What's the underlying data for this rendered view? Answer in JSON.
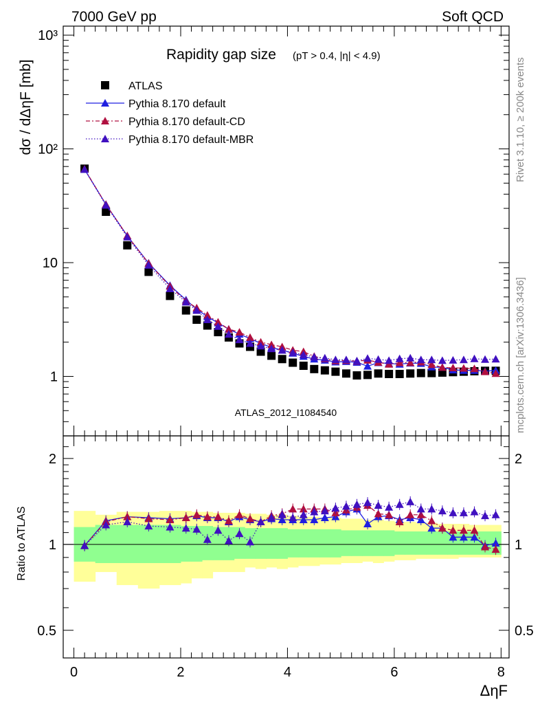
{
  "header": {
    "left": "7000 GeV pp",
    "right": "Soft QCD"
  },
  "side_labels": {
    "rivet": "Rivet 3.1.10, ≥ 200k events",
    "mcplots": "mcplots.cern.ch [arXiv:1306.3436]"
  },
  "chart_data": [
    {
      "type": "scatter",
      "panel": "main",
      "title": "Rapidity gap size",
      "title_suffix": "(pT > 0.4, |η| < 4.9)",
      "analysis_id": "ATLAS_2012_I1084540",
      "ylabel": "dσ / dΔηF [mb]",
      "yscale": "log",
      "ylim": [
        0.3,
        1200
      ],
      "xlim": [
        -0.2,
        8.15
      ],
      "y_tick_labels": [
        "1",
        "10",
        "10²",
        "10³"
      ],
      "legend_position": "top-left",
      "x": [
        0.2,
        0.6,
        1.0,
        1.4,
        1.8,
        2.1,
        2.3,
        2.5,
        2.7,
        2.9,
        3.1,
        3.3,
        3.5,
        3.7,
        3.9,
        4.1,
        4.3,
        4.5,
        4.7,
        4.9,
        5.1,
        5.3,
        5.5,
        5.7,
        5.9,
        6.1,
        6.3,
        6.5,
        6.7,
        6.9,
        7.1,
        7.3,
        7.5,
        7.7,
        7.9
      ],
      "series": [
        {
          "name": "ATLAS",
          "color": "#000000",
          "marker": "square",
          "values": [
            67,
            28,
            14.2,
            8.3,
            5.1,
            3.8,
            3.15,
            2.8,
            2.45,
            2.2,
            1.95,
            1.82,
            1.65,
            1.52,
            1.42,
            1.32,
            1.24,
            1.16,
            1.13,
            1.1,
            1.06,
            1.02,
            1.03,
            1.06,
            1.05,
            1.05,
            1.06,
            1.07,
            1.07,
            1.08,
            1.09,
            1.1,
            1.11,
            1.12,
            1.12
          ]
        },
        {
          "name": "Pythia 8.170 default",
          "color": "#1f1fe0",
          "marker": "triangle",
          "line": "solid",
          "values": [
            66,
            32.5,
            17.2,
            9.9,
            6.3,
            4.7,
            3.9,
            3.35,
            2.95,
            2.6,
            2.35,
            2.15,
            1.95,
            1.8,
            1.7,
            1.6,
            1.5,
            1.42,
            1.39,
            1.34,
            1.35,
            1.33,
            1.23,
            1.32,
            1.3,
            1.28,
            1.31,
            1.3,
            1.21,
            1.2,
            1.14,
            1.13,
            1.13,
            1.11,
            1.13
          ]
        },
        {
          "name": "Pythia 8.170 default-CD",
          "color": "#b01040",
          "marker": "triangle",
          "line": "dashdot",
          "values": [
            66.5,
            32.5,
            17.2,
            9.85,
            6.2,
            4.6,
            4.0,
            3.45,
            3.0,
            2.6,
            2.45,
            2.2,
            2.0,
            1.9,
            1.82,
            1.7,
            1.65,
            1.5,
            1.43,
            1.37,
            1.38,
            1.36,
            1.39,
            1.33,
            1.28,
            1.32,
            1.32,
            1.34,
            1.27,
            1.2,
            1.19,
            1.18,
            1.17,
            1.1,
            1.06
          ]
        },
        {
          "name": "Pythia 8.170 default-MBR",
          "color": "#4010c0",
          "marker": "triangle",
          "line": "dotted",
          "values": [
            66,
            32,
            16.8,
            9.5,
            5.9,
            4.5,
            3.8,
            3.15,
            2.75,
            2.35,
            2.1,
            1.95,
            1.85,
            1.75,
            1.7,
            1.62,
            1.55,
            1.48,
            1.45,
            1.4,
            1.4,
            1.37,
            1.44,
            1.41,
            1.38,
            1.43,
            1.45,
            1.4,
            1.4,
            1.38,
            1.39,
            1.4,
            1.43,
            1.41,
            1.42
          ]
        }
      ]
    },
    {
      "type": "scatter",
      "panel": "ratio",
      "xlabel": "ΔηF",
      "ylabel": "Ratio to ATLAS",
      "ylim": [
        0.4,
        2.4
      ],
      "y_tick_labels": [
        "0.5",
        "1",
        "2"
      ],
      "x_tick_labels": [
        "0",
        "2",
        "4",
        "6",
        "8"
      ],
      "x": [
        0.2,
        0.6,
        1.0,
        1.4,
        1.8,
        2.1,
        2.3,
        2.5,
        2.7,
        2.9,
        3.1,
        3.3,
        3.5,
        3.7,
        3.9,
        4.1,
        4.3,
        4.5,
        4.7,
        4.9,
        5.1,
        5.3,
        5.5,
        5.7,
        5.9,
        6.1,
        6.3,
        6.5,
        6.7,
        6.9,
        7.1,
        7.3,
        7.5,
        7.7,
        7.9
      ],
      "band_edges": [
        0.0,
        0.4,
        0.8,
        1.2,
        1.6,
        2.0,
        2.2,
        2.4,
        2.6,
        2.8,
        3.0,
        3.2,
        3.4,
        3.6,
        3.8,
        4.0,
        4.2,
        4.4,
        4.6,
        4.8,
        5.0,
        5.2,
        5.4,
        5.6,
        5.8,
        6.0,
        6.2,
        6.4,
        6.6,
        6.8,
        7.0,
        7.2,
        7.4,
        7.6,
        7.8,
        8.0
      ],
      "band_green": {
        "color": "#90ff90",
        "lower": [
          0.87,
          0.86,
          0.86,
          0.86,
          0.86,
          0.87,
          0.87,
          0.88,
          0.88,
          0.88,
          0.89,
          0.89,
          0.89,
          0.89,
          0.89,
          0.9,
          0.9,
          0.9,
          0.9,
          0.9,
          0.91,
          0.91,
          0.91,
          0.91,
          0.91,
          0.92,
          0.92,
          0.92,
          0.92,
          0.92,
          0.92,
          0.92,
          0.92,
          0.92,
          0.92
        ],
        "upper": [
          1.15,
          1.17,
          1.17,
          1.17,
          1.17,
          1.16,
          1.16,
          1.16,
          1.15,
          1.15,
          1.15,
          1.14,
          1.14,
          1.14,
          1.14,
          1.13,
          1.13,
          1.13,
          1.13,
          1.13,
          1.12,
          1.12,
          1.12,
          1.12,
          1.12,
          1.11,
          1.11,
          1.11,
          1.11,
          1.11,
          1.11,
          1.11,
          1.11,
          1.11,
          1.11
        ]
      },
      "band_yellow": {
        "color": "#ffff99",
        "lower": [
          0.74,
          0.8,
          0.72,
          0.7,
          0.72,
          0.73,
          0.76,
          0.76,
          0.8,
          0.8,
          0.8,
          0.83,
          0.82,
          0.83,
          0.82,
          0.83,
          0.84,
          0.84,
          0.85,
          0.85,
          0.86,
          0.86,
          0.87,
          0.86,
          0.87,
          0.88,
          0.88,
          0.89,
          0.89,
          0.89,
          0.89,
          0.9,
          0.9,
          0.9,
          0.9
        ],
        "upper": [
          1.31,
          1.27,
          1.3,
          1.3,
          1.31,
          1.31,
          1.3,
          1.3,
          1.29,
          1.29,
          1.29,
          1.28,
          1.28,
          1.27,
          1.27,
          1.26,
          1.25,
          1.25,
          1.24,
          1.24,
          1.23,
          1.23,
          1.22,
          1.22,
          1.21,
          1.2,
          1.2,
          1.19,
          1.19,
          1.18,
          1.18,
          1.18,
          1.17,
          1.17,
          1.17
        ]
      },
      "series": [
        {
          "name": "Pythia 8.170 default",
          "color": "#1f1fe0",
          "line": "solid",
          "values": [
            0.99,
            1.21,
            1.25,
            1.24,
            1.23,
            1.24,
            1.26,
            1.24,
            1.24,
            1.2,
            1.25,
            1.22,
            1.2,
            1.23,
            1.22,
            1.22,
            1.22,
            1.22,
            1.24,
            1.25,
            1.3,
            1.33,
            1.18,
            1.25,
            1.26,
            1.22,
            1.24,
            1.22,
            1.14,
            1.14,
            1.06,
            1.06,
            1.06,
            0.99,
            1.01
          ]
        },
        {
          "name": "Pythia 8.170 default-CD",
          "color": "#b01040",
          "line": "dashdot",
          "values": [
            0.99,
            1.2,
            1.25,
            1.23,
            1.22,
            1.24,
            1.27,
            1.25,
            1.25,
            1.21,
            1.27,
            1.23,
            1.2,
            1.26,
            1.28,
            1.33,
            1.33,
            1.33,
            1.33,
            1.29,
            1.32,
            1.35,
            1.37,
            1.28,
            1.27,
            1.2,
            1.27,
            1.27,
            1.21,
            1.14,
            1.12,
            1.12,
            1.12,
            0.98,
            0.96
          ]
        },
        {
          "name": "Pythia 8.170 default-MBR",
          "color": "#4010c0",
          "line": "dotted",
          "values": [
            0.99,
            1.17,
            1.2,
            1.16,
            1.15,
            1.14,
            1.13,
            1.04,
            1.12,
            1.03,
            1.09,
            1.02,
            1.2,
            1.24,
            1.27,
            1.24,
            1.27,
            1.3,
            1.31,
            1.34,
            1.36,
            1.38,
            1.4,
            1.37,
            1.35,
            1.38,
            1.41,
            1.33,
            1.33,
            1.31,
            1.29,
            1.29,
            1.3,
            1.26,
            1.27
          ]
        }
      ]
    }
  ]
}
